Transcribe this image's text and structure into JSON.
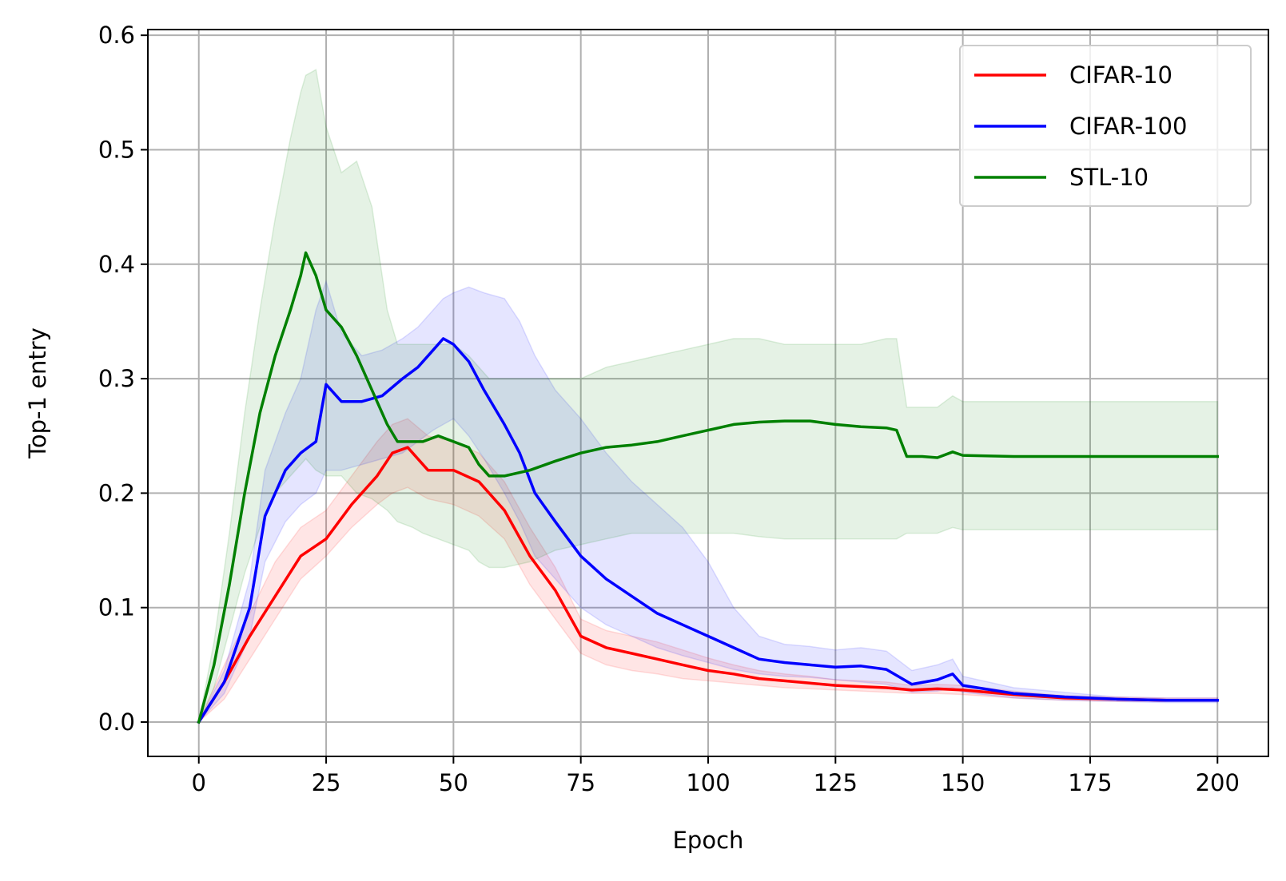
{
  "chart_data": {
    "type": "line",
    "title": "",
    "xlabel": "Epoch",
    "ylabel": "Top-1 entry",
    "xlim": [
      -10,
      210
    ],
    "ylim": [
      -0.03,
      0.605
    ],
    "xticks": [
      0,
      25,
      50,
      75,
      100,
      125,
      150,
      175,
      200
    ],
    "xtick_labels": [
      "0",
      "25",
      "50",
      "75",
      "100",
      "125",
      "150",
      "175",
      "200"
    ],
    "yticks": [
      0.0,
      0.1,
      0.2,
      0.3,
      0.4,
      0.5,
      0.6
    ],
    "ytick_labels": [
      "0.0",
      "0.1",
      "0.2",
      "0.3",
      "0.4",
      "0.5",
      "0.6"
    ],
    "grid": true,
    "legend_position": "top-right",
    "series": [
      {
        "name": "CIFAR-10",
        "color": "#ff0000",
        "x": [
          0,
          5,
          10,
          15,
          20,
          25,
          30,
          35,
          38,
          41,
          45,
          50,
          55,
          60,
          65,
          70,
          75,
          80,
          85,
          90,
          95,
          100,
          105,
          110,
          115,
          120,
          125,
          130,
          135,
          140,
          145,
          150,
          160,
          170,
          180,
          190,
          200
        ],
        "y": [
          0.0,
          0.035,
          0.075,
          0.11,
          0.145,
          0.16,
          0.19,
          0.215,
          0.235,
          0.24,
          0.22,
          0.22,
          0.21,
          0.185,
          0.145,
          0.115,
          0.075,
          0.065,
          0.06,
          0.055,
          0.05,
          0.045,
          0.042,
          0.038,
          0.036,
          0.034,
          0.032,
          0.031,
          0.03,
          0.028,
          0.029,
          0.028,
          0.024,
          0.021,
          0.02,
          0.019,
          0.019
        ],
        "lower": [
          0.0,
          0.02,
          0.055,
          0.09,
          0.125,
          0.145,
          0.17,
          0.19,
          0.2,
          0.205,
          0.195,
          0.19,
          0.18,
          0.16,
          0.12,
          0.09,
          0.06,
          0.05,
          0.045,
          0.042,
          0.038,
          0.036,
          0.034,
          0.032,
          0.03,
          0.029,
          0.028,
          0.027,
          0.026,
          0.025,
          0.025,
          0.024,
          0.021,
          0.019,
          0.018,
          0.018,
          0.018
        ],
        "upper": [
          0.0,
          0.05,
          0.095,
          0.14,
          0.17,
          0.185,
          0.215,
          0.245,
          0.26,
          0.265,
          0.25,
          0.245,
          0.235,
          0.21,
          0.17,
          0.135,
          0.09,
          0.08,
          0.075,
          0.07,
          0.063,
          0.056,
          0.05,
          0.045,
          0.042,
          0.04,
          0.037,
          0.036,
          0.035,
          0.032,
          0.033,
          0.032,
          0.027,
          0.023,
          0.022,
          0.021,
          0.021
        ]
      },
      {
        "name": "CIFAR-100",
        "color": "#0000ff",
        "x": [
          0,
          5,
          10,
          13,
          17,
          20,
          23,
          25,
          28,
          32,
          36,
          40,
          43,
          46,
          48,
          50,
          53,
          56,
          60,
          63,
          66,
          70,
          75,
          80,
          85,
          90,
          95,
          100,
          105,
          110,
          115,
          120,
          125,
          130,
          135,
          140,
          145,
          148,
          150,
          160,
          170,
          180,
          190,
          200
        ],
        "y": [
          0.0,
          0.035,
          0.1,
          0.18,
          0.22,
          0.235,
          0.245,
          0.295,
          0.28,
          0.28,
          0.285,
          0.3,
          0.31,
          0.325,
          0.335,
          0.33,
          0.315,
          0.29,
          0.26,
          0.235,
          0.2,
          0.175,
          0.145,
          0.125,
          0.11,
          0.095,
          0.085,
          0.075,
          0.065,
          0.055,
          0.052,
          0.05,
          0.048,
          0.049,
          0.046,
          0.033,
          0.037,
          0.042,
          0.032,
          0.025,
          0.022,
          0.02,
          0.019,
          0.019
        ],
        "lower": [
          0.0,
          0.025,
          0.075,
          0.14,
          0.175,
          0.19,
          0.2,
          0.22,
          0.22,
          0.225,
          0.23,
          0.235,
          0.245,
          0.255,
          0.26,
          0.265,
          0.25,
          0.23,
          0.2,
          0.175,
          0.145,
          0.125,
          0.1,
          0.085,
          0.075,
          0.065,
          0.058,
          0.052,
          0.046,
          0.042,
          0.04,
          0.039,
          0.037,
          0.035,
          0.033,
          0.026,
          0.027,
          0.03,
          0.026,
          0.021,
          0.019,
          0.018,
          0.017,
          0.017
        ],
        "upper": [
          0.0,
          0.045,
          0.125,
          0.22,
          0.27,
          0.3,
          0.36,
          0.385,
          0.34,
          0.32,
          0.325,
          0.335,
          0.345,
          0.36,
          0.37,
          0.375,
          0.38,
          0.375,
          0.37,
          0.35,
          0.32,
          0.29,
          0.265,
          0.235,
          0.21,
          0.19,
          0.17,
          0.14,
          0.1,
          0.075,
          0.068,
          0.066,
          0.063,
          0.065,
          0.062,
          0.045,
          0.05,
          0.055,
          0.04,
          0.03,
          0.026,
          0.022,
          0.021,
          0.021
        ]
      },
      {
        "name": "STL-10",
        "color": "#008000",
        "x": [
          0,
          3,
          6,
          9,
          12,
          15,
          18,
          20,
          21,
          23,
          25,
          28,
          31,
          34,
          37,
          39,
          42,
          44,
          47,
          50,
          53,
          55,
          57,
          60,
          65,
          70,
          75,
          80,
          85,
          90,
          95,
          100,
          105,
          110,
          115,
          120,
          125,
          130,
          135,
          137,
          139,
          142,
          145,
          148,
          150,
          160,
          170,
          180,
          190,
          200
        ],
        "y": [
          0.0,
          0.05,
          0.12,
          0.2,
          0.27,
          0.32,
          0.36,
          0.39,
          0.41,
          0.39,
          0.36,
          0.345,
          0.32,
          0.29,
          0.26,
          0.245,
          0.245,
          0.245,
          0.25,
          0.245,
          0.24,
          0.225,
          0.215,
          0.215,
          0.22,
          0.228,
          0.235,
          0.24,
          0.242,
          0.245,
          0.25,
          0.255,
          0.26,
          0.262,
          0.263,
          0.263,
          0.26,
          0.258,
          0.257,
          0.255,
          0.232,
          0.232,
          0.231,
          0.236,
          0.233,
          0.232,
          0.232,
          0.232,
          0.232,
          0.232
        ],
        "lower": [
          0.0,
          0.03,
          0.08,
          0.13,
          0.17,
          0.2,
          0.215,
          0.225,
          0.23,
          0.22,
          0.215,
          0.215,
          0.2,
          0.195,
          0.185,
          0.175,
          0.17,
          0.165,
          0.16,
          0.155,
          0.15,
          0.14,
          0.135,
          0.135,
          0.14,
          0.15,
          0.155,
          0.16,
          0.165,
          0.165,
          0.165,
          0.165,
          0.165,
          0.162,
          0.16,
          0.16,
          0.16,
          0.16,
          0.16,
          0.16,
          0.165,
          0.165,
          0.165,
          0.17,
          0.168,
          0.168,
          0.168,
          0.168,
          0.168,
          0.168
        ],
        "upper": [
          0.0,
          0.07,
          0.165,
          0.27,
          0.36,
          0.44,
          0.51,
          0.55,
          0.565,
          0.57,
          0.52,
          0.48,
          0.49,
          0.45,
          0.36,
          0.33,
          0.33,
          0.33,
          0.33,
          0.33,
          0.32,
          0.31,
          0.3,
          0.3,
          0.3,
          0.3,
          0.3,
          0.31,
          0.315,
          0.32,
          0.325,
          0.33,
          0.335,
          0.335,
          0.33,
          0.33,
          0.33,
          0.33,
          0.335,
          0.335,
          0.275,
          0.275,
          0.275,
          0.285,
          0.28,
          0.28,
          0.28,
          0.28,
          0.28,
          0.28
        ]
      }
    ]
  }
}
